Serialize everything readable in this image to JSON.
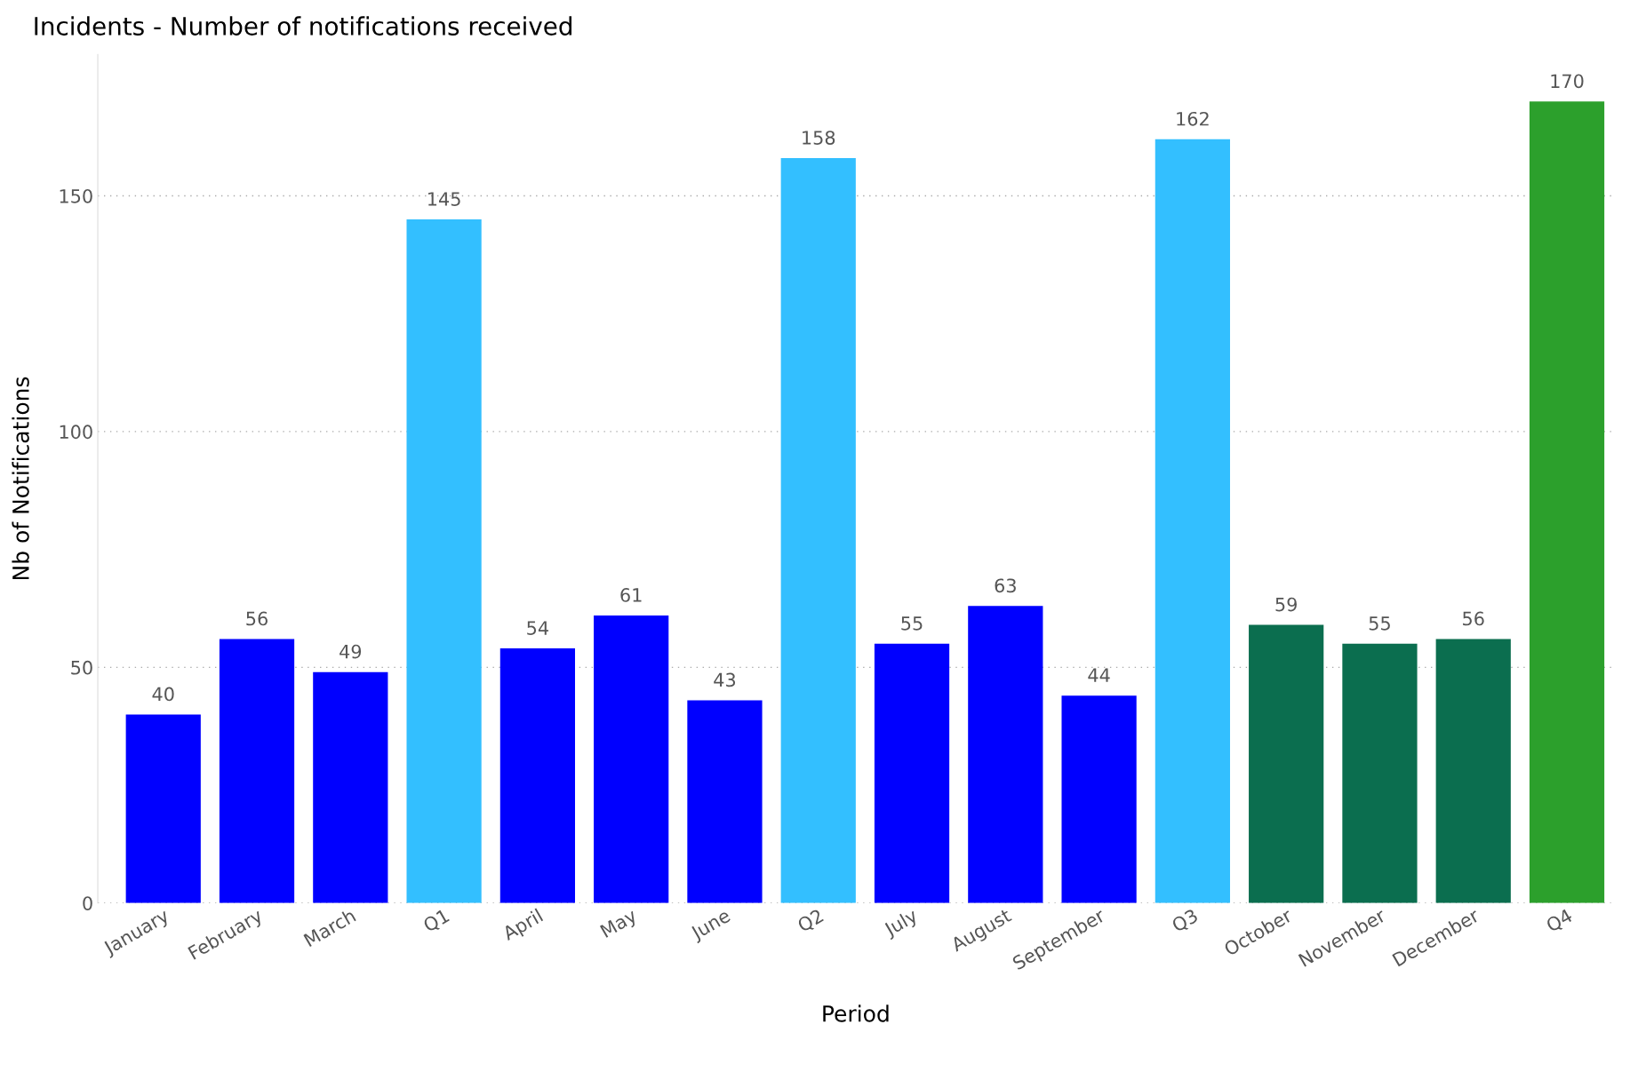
{
  "chart_data": {
    "type": "bar",
    "title": "Incidents - Number of notifications received",
    "xlabel": "Period",
    "ylabel": "Nb of Notifications",
    "categories": [
      "January",
      "February",
      "March",
      "Q1",
      "April",
      "May",
      "June",
      "Q2",
      "July",
      "August",
      "September",
      "Q3",
      "October",
      "November",
      "December",
      "Q4"
    ],
    "values": [
      40,
      56,
      49,
      145,
      54,
      61,
      43,
      158,
      55,
      63,
      44,
      162,
      59,
      55,
      56,
      170
    ],
    "colors": [
      "#0000ff",
      "#0000ff",
      "#0000ff",
      "#33bfff",
      "#0000ff",
      "#0000ff",
      "#0000ff",
      "#33bfff",
      "#0000ff",
      "#0000ff",
      "#0000ff",
      "#33bfff",
      "#0b6e4f",
      "#0b6e4f",
      "#0b6e4f",
      "#2ca02c"
    ],
    "ylim": [
      0,
      180
    ],
    "yticks": [
      0,
      50,
      100,
      150
    ],
    "grid": "y",
    "data_labels": true,
    "legend": false
  }
}
